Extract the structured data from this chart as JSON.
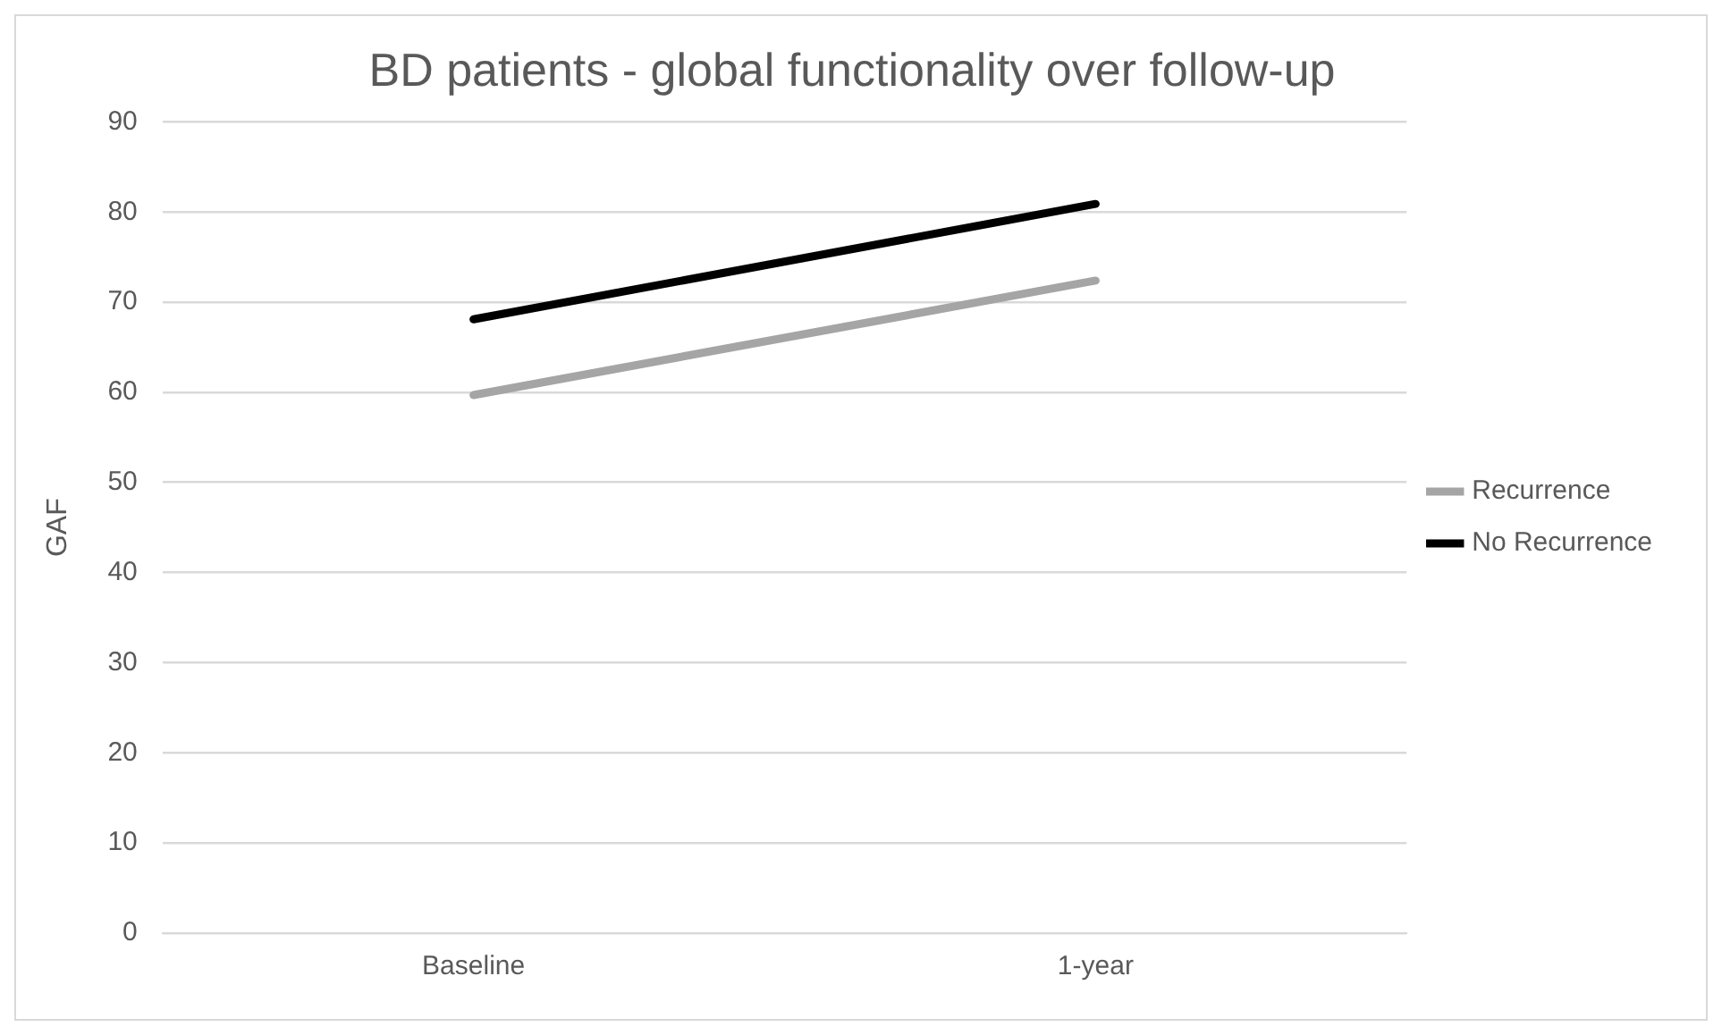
{
  "chart_data": {
    "type": "line",
    "title": "BD patients - global functionality over follow-up",
    "ylabel": "GAF",
    "categories": [
      "Baseline",
      "1-year"
    ],
    "series": [
      {
        "name": "Recurrence",
        "color": "#a5a5a5",
        "values": [
          59.7,
          72.4
        ]
      },
      {
        "name": "No Recurrence",
        "color": "#000000",
        "values": [
          68.1,
          80.9
        ]
      }
    ],
    "ylim": [
      0,
      90
    ],
    "yticks": [
      0,
      10,
      20,
      30,
      40,
      50,
      60,
      70,
      80,
      90
    ],
    "grid": "y",
    "legend": "right",
    "marker": "none",
    "line_style": "solid"
  }
}
